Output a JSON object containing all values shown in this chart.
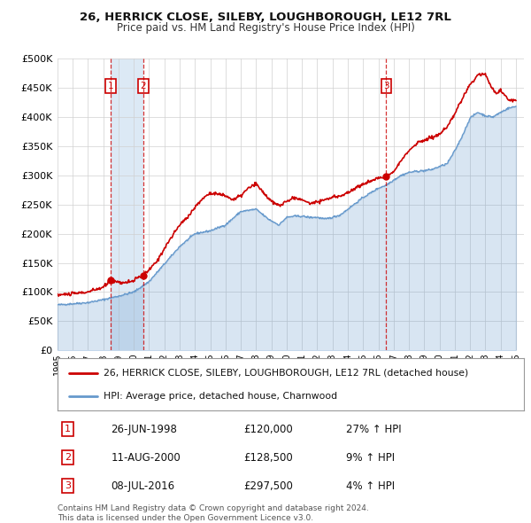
{
  "title": "26, HERRICK CLOSE, SILEBY, LOUGHBOROUGH, LE12 7RL",
  "subtitle": "Price paid vs. HM Land Registry's House Price Index (HPI)",
  "legend_label_red": "26, HERRICK CLOSE, SILEBY, LOUGHBOROUGH, LE12 7RL (detached house)",
  "legend_label_blue": "HPI: Average price, detached house, Charnwood",
  "footer": "Contains HM Land Registry data © Crown copyright and database right 2024.\nThis data is licensed under the Open Government Licence v3.0.",
  "table": [
    {
      "num": "1",
      "date": "26-JUN-1998",
      "price": "£120,000",
      "hpi": "27% ↑ HPI"
    },
    {
      "num": "2",
      "date": "11-AUG-2000",
      "price": "£128,500",
      "hpi": "9% ↑ HPI"
    },
    {
      "num": "3",
      "date": "08-JUL-2016",
      "price": "£297,500",
      "hpi": "4% ↑ HPI"
    }
  ],
  "purchases": [
    {
      "date_num": 1998.49,
      "price": 120000,
      "label": "1"
    },
    {
      "date_num": 2000.61,
      "price": 128500,
      "label": "2"
    },
    {
      "date_num": 2016.52,
      "price": 297500,
      "label": "3"
    }
  ],
  "vlines": [
    1998.49,
    2000.61,
    2016.52
  ],
  "shade_between": [
    1998.49,
    2000.61
  ],
  "ylim": [
    0,
    500000
  ],
  "xlim": [
    1995.0,
    2025.5
  ],
  "yticks": [
    0,
    50000,
    100000,
    150000,
    200000,
    250000,
    300000,
    350000,
    400000,
    450000,
    500000
  ],
  "bg_color": "#ffffff",
  "plot_bg": "#ffffff",
  "red_color": "#cc0000",
  "blue_color": "#6699cc",
  "blue_fill_color": "#dce9f5",
  "grid_color": "#d0d0d0"
}
